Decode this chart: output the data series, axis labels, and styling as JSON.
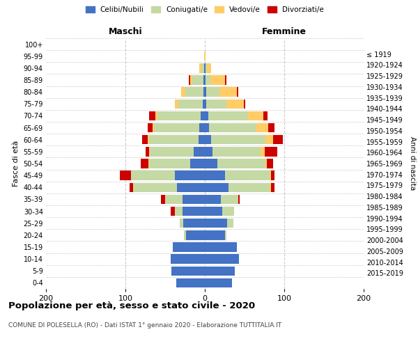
{
  "age_groups": [
    "0-4",
    "5-9",
    "10-14",
    "15-19",
    "20-24",
    "25-29",
    "30-34",
    "35-39",
    "40-44",
    "45-49",
    "50-54",
    "55-59",
    "60-64",
    "65-69",
    "70-74",
    "75-79",
    "80-84",
    "85-89",
    "90-94",
    "95-99",
    "100+"
  ],
  "birth_years": [
    "2015-2019",
    "2010-2014",
    "2005-2009",
    "2000-2004",
    "1995-1999",
    "1990-1994",
    "1985-1989",
    "1980-1984",
    "1975-1979",
    "1970-1974",
    "1965-1969",
    "1960-1964",
    "1955-1959",
    "1950-1954",
    "1945-1949",
    "1940-1944",
    "1935-1939",
    "1930-1934",
    "1925-1929",
    "1920-1924",
    "≤ 1919"
  ],
  "maschi": {
    "celibi": [
      36,
      42,
      43,
      40,
      24,
      27,
      28,
      28,
      35,
      38,
      18,
      14,
      8,
      7,
      5,
      3,
      2,
      2,
      1,
      0,
      0
    ],
    "coniugati": [
      0,
      0,
      0,
      0,
      2,
      5,
      10,
      22,
      55,
      55,
      52,
      55,
      62,
      57,
      55,
      30,
      23,
      14,
      3,
      0,
      0
    ],
    "vedovi": [
      0,
      0,
      0,
      0,
      0,
      0,
      0,
      0,
      0,
      0,
      1,
      1,
      2,
      2,
      2,
      5,
      5,
      2,
      3,
      1,
      0
    ],
    "divorziati": [
      0,
      0,
      0,
      0,
      0,
      0,
      5,
      5,
      5,
      14,
      10,
      5,
      7,
      6,
      8,
      0,
      0,
      2,
      0,
      0,
      0
    ]
  },
  "femmine": {
    "nubili": [
      34,
      38,
      43,
      40,
      25,
      28,
      22,
      20,
      30,
      25,
      16,
      10,
      8,
      5,
      4,
      2,
      2,
      1,
      1,
      0,
      0
    ],
    "coniugate": [
      0,
      0,
      0,
      0,
      2,
      8,
      15,
      22,
      52,
      57,
      60,
      60,
      68,
      60,
      50,
      25,
      16,
      6,
      2,
      0,
      0
    ],
    "vedove": [
      0,
      0,
      0,
      0,
      0,
      0,
      0,
      0,
      1,
      1,
      2,
      5,
      10,
      15,
      20,
      22,
      22,
      18,
      5,
      1,
      0
    ],
    "divorziate": [
      0,
      0,
      0,
      0,
      0,
      0,
      0,
      2,
      5,
      5,
      8,
      16,
      12,
      8,
      5,
      2,
      2,
      2,
      0,
      0,
      0
    ]
  },
  "colors": {
    "celibi": "#4472C4",
    "coniugati": "#C5D9A4",
    "vedovi": "#FFCC66",
    "divorziati": "#CC0000"
  },
  "xlim": 200,
  "title": "Popolazione per età, sesso e stato civile - 2020",
  "subtitle": "COMUNE DI POLESELLA (RO) - Dati ISTAT 1° gennaio 2020 - Elaborazione TUTTITALIA.IT",
  "ylabel_left": "Fasce di età",
  "ylabel_right": "Anni di nascita",
  "xlabel_maschi": "Maschi",
  "xlabel_femmine": "Femmine"
}
